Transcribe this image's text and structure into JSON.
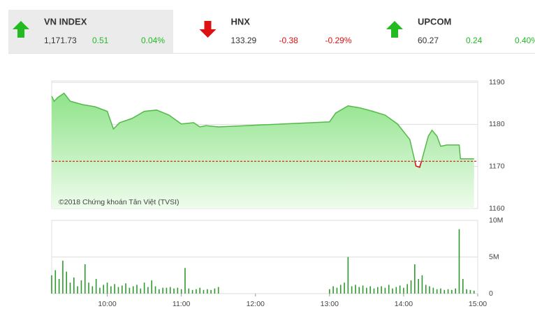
{
  "selected": 0,
  "indices": [
    {
      "name": "VN INDEX",
      "value": "1,171.73",
      "change": "0.51",
      "percent": "0.04%",
      "direction": "up"
    },
    {
      "name": "HNX",
      "value": "133.29",
      "change": "-0.38",
      "percent": "-0.29%",
      "direction": "down"
    },
    {
      "name": "UPCOM",
      "value": "60.27",
      "change": "0.24",
      "percent": "0.40%",
      "direction": "up"
    }
  ],
  "chart_data": [
    {
      "type": "area",
      "annotation": "©2018 Chứng khoán Tân Việt (TVSI)",
      "x": [
        555,
        557,
        560,
        565,
        570,
        580,
        590,
        600,
        605,
        610,
        620,
        630,
        640,
        650,
        660,
        670,
        675,
        680,
        690,
        780,
        785,
        795,
        805,
        815,
        825,
        835,
        845,
        850,
        853,
        855,
        860,
        863,
        867,
        870,
        875,
        885,
        886,
        897
      ],
      "values": [
        1186.7,
        1185.5,
        1186.4,
        1187.4,
        1185.5,
        1184.7,
        1184.2,
        1183.1,
        1178.9,
        1180.4,
        1181.4,
        1183.1,
        1183.4,
        1182.2,
        1180.1,
        1180.4,
        1179.4,
        1179.7,
        1179.4,
        1180.6,
        1182.7,
        1184.4,
        1183.9,
        1183.1,
        1182.2,
        1180.1,
        1176.4,
        1170.1,
        1169.8,
        1171.8,
        1177.2,
        1178.6,
        1177.2,
        1174.8,
        1175.1,
        1175.1,
        1171.8,
        1171.8
      ],
      "color": "#55b949",
      "below_color": "#dd1111",
      "reference": 1171.22,
      "reference_color": "#cc0000",
      "xlim": [
        555,
        900
      ],
      "ylim": [
        1160,
        1190
      ],
      "yticks": [
        1190,
        1180,
        1170,
        1160
      ],
      "grid": true
    },
    {
      "type": "bar",
      "x": [
        555,
        558,
        561,
        564,
        567,
        570,
        573,
        576,
        579,
        582,
        585,
        588,
        591,
        594,
        597,
        600,
        603,
        606,
        609,
        612,
        615,
        618,
        621,
        624,
        627,
        630,
        633,
        636,
        639,
        642,
        645,
        648,
        651,
        654,
        657,
        660,
        663,
        666,
        669,
        672,
        675,
        678,
        681,
        684,
        687,
        690,
        780,
        783,
        786,
        789,
        792,
        795,
        798,
        801,
        804,
        807,
        810,
        813,
        816,
        819,
        822,
        825,
        828,
        831,
        834,
        837,
        840,
        843,
        846,
        849,
        852,
        855,
        858,
        861,
        864,
        867,
        870,
        873,
        876,
        879,
        882,
        885,
        888,
        891,
        894,
        897
      ],
      "values": [
        2500000,
        3200000,
        2000000,
        4500000,
        3000000,
        1500000,
        2200000,
        1000000,
        1800000,
        4000000,
        1500000,
        1000000,
        2000000,
        800000,
        1200000,
        1500000,
        1000000,
        1300000,
        900000,
        1100000,
        1400000,
        800000,
        1000000,
        1200000,
        700000,
        1500000,
        900000,
        1800000,
        1000000,
        600000,
        800000,
        800000,
        900000,
        700000,
        800000,
        600000,
        3500000,
        700000,
        500000,
        600000,
        800000,
        500000,
        600000,
        500000,
        700000,
        900000,
        600000,
        1000000,
        800000,
        1200000,
        1500000,
        5000000,
        1000000,
        1200000,
        900000,
        1100000,
        800000,
        1000000,
        700000,
        900000,
        1000000,
        800000,
        1200000,
        700000,
        900000,
        1100000,
        800000,
        1300000,
        1800000,
        4000000,
        2000000,
        2500000,
        1200000,
        1000000,
        800000,
        600000,
        700000,
        500000,
        600000,
        500000,
        700000,
        8800000,
        2000000,
        600000,
        500000,
        400000
      ],
      "color": "#2e9a2e",
      "xlim": [
        555,
        900
      ],
      "xticks": [
        {
          "value": 600,
          "label": "10:00"
        },
        {
          "value": 660,
          "label": "11:00"
        },
        {
          "value": 720,
          "label": "12:00"
        },
        {
          "value": 780,
          "label": "13:00"
        },
        {
          "value": 840,
          "label": "14:00"
        },
        {
          "value": 900,
          "label": "15:00"
        }
      ],
      "ylim": [
        0,
        10000000
      ],
      "yticks": [
        {
          "value": 10000000,
          "label": "10M"
        },
        {
          "value": 5000000,
          "label": "5M"
        },
        0
      ],
      "grid": true
    }
  ]
}
